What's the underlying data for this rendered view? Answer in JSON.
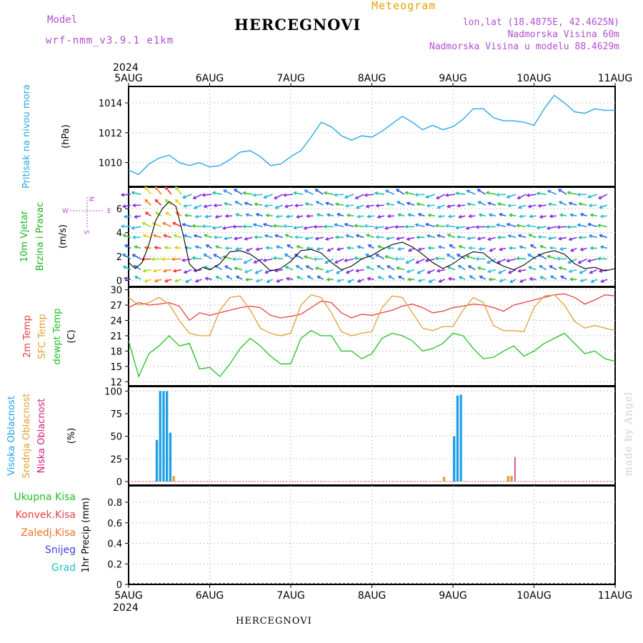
{
  "header": {
    "model_label": "Model",
    "model_name": "wrf-nmm_v3.9.1 e1km",
    "title": "HERCEGNOVI",
    "meteogram_label": "Meteogram",
    "lonlat": "lon,lat (18.4875E, 42.4625N)",
    "altitude": "Nadmorska Visina 60m",
    "model_altitude": "Nadmorska Visina u modelu 88.4629m"
  },
  "footer": {
    "location": "HERCEGNOVI",
    "watermark": "made by Angel"
  },
  "colors": {
    "pressure": "#2aa8e6",
    "temp2m": "#e84040",
    "sfc_temp": "#e0a030",
    "dewpoint": "#20c020",
    "cloud_high": "#1ea0e6",
    "cloud_mid": "#e0a030",
    "cloud_low": "#d02080",
    "precip_total": "#20c020",
    "precip_conv": "#e84040",
    "precip_frozen": "#f07020",
    "snow": "#4040e0",
    "hail": "#20c0c0"
  },
  "chart_data": [
    {
      "type": "line",
      "panel": "pressure",
      "ylabel_1": "Pritisak na nivou mora",
      "ylabel_2": "(hPa)",
      "x_year": "2024",
      "x_ticks": [
        "5AUG",
        "6AUG",
        "7AUG",
        "8AUG",
        "9AUG",
        "10AUG",
        "11AUG"
      ],
      "yticks": [
        1010,
        1012,
        1014
      ],
      "ylim": [
        1008.4,
        1015.1
      ],
      "grid": true,
      "series": [
        {
          "x": [
            0,
            3,
            6,
            9,
            12,
            15,
            18,
            21,
            24,
            27,
            30,
            33,
            36,
            39,
            42,
            45,
            48,
            51,
            54,
            57,
            60,
            63,
            66,
            69,
            72,
            75,
            78,
            81,
            84,
            87,
            90,
            93,
            96,
            99,
            102,
            105,
            108,
            111,
            114,
            117,
            120,
            123,
            126,
            129,
            132,
            135,
            138,
            141,
            144
          ],
          "values": [
            1009.5,
            1009.2,
            1009.9,
            1010.3,
            1010.5,
            1010.0,
            1009.8,
            1010.0,
            1009.7,
            1009.8,
            1010.2,
            1010.7,
            1010.8,
            1010.4,
            1009.8,
            1009.9,
            1010.4,
            1010.8,
            1011.7,
            1012.7,
            1012.4,
            1011.8,
            1011.5,
            1011.8,
            1011.7,
            1012.1,
            1012.6,
            1013.1,
            1012.7,
            1012.2,
            1012.5,
            1012.2,
            1012.4,
            1012.9,
            1013.6,
            1013.6,
            1013.0,
            1012.8,
            1012.8,
            1012.7,
            1012.5,
            1013.6,
            1014.5,
            1014.0,
            1013.4,
            1013.3,
            1013.6,
            1013.5,
            1013.5
          ]
        }
      ]
    },
    {
      "type": "line",
      "panel": "wind",
      "ylabel_1": "10m Vjetar",
      "ylabel_2": "Brzina i Pravac",
      "ylabel_3": "(m/s)",
      "compass": {
        "n": "N",
        "s": "S",
        "e": "E",
        "w": "W"
      },
      "yticks": [
        0,
        2,
        4,
        6
      ],
      "ylim": [
        -0.5,
        7.8
      ],
      "series": [
        {
          "name": "wind speed",
          "x": [
            0,
            2,
            4,
            6,
            8,
            10,
            12,
            14,
            16,
            18,
            20,
            22,
            24,
            27,
            30,
            33,
            36,
            39,
            42,
            45,
            48,
            51,
            54,
            57,
            60,
            63,
            66,
            69,
            72,
            75,
            78,
            81,
            84,
            87,
            90,
            93,
            96,
            99,
            102,
            105,
            108,
            111,
            114,
            117,
            120,
            123,
            126,
            129,
            132,
            135,
            138,
            141,
            144
          ],
          "values": [
            1.5,
            1.0,
            1.5,
            3.0,
            5.0,
            6.0,
            6.6,
            6.2,
            4.0,
            1.4,
            0.8,
            1.1,
            0.9,
            1.4,
            2.4,
            2.5,
            2.2,
            1.6,
            0.8,
            1.0,
            1.6,
            2.5,
            2.6,
            2.3,
            1.5,
            0.9,
            1.2,
            1.8,
            2.1,
            2.6,
            3.0,
            3.2,
            2.8,
            2.2,
            1.5,
            1.0,
            1.4,
            2.0,
            2.4,
            2.3,
            1.6,
            1.2,
            0.9,
            1.3,
            1.9,
            2.3,
            2.5,
            2.2,
            1.4,
            1.0,
            1.1,
            0.8,
            1.0
          ]
        }
      ]
    },
    {
      "type": "line",
      "panel": "temperature",
      "ylabel_1": "2m Temp",
      "ylabel_2": "SFC Temp",
      "ylabel_3": "dewpt Temp",
      "ylabel_4": "(C)",
      "yticks": [
        12,
        15,
        18,
        21,
        24,
        27,
        30
      ],
      "ylim": [
        11.2,
        30.5
      ],
      "series": [
        {
          "name": "2m Temp",
          "x": [
            0,
            3,
            6,
            9,
            12,
            15,
            18,
            21,
            24,
            27,
            30,
            33,
            36,
            39,
            42,
            45,
            48,
            51,
            54,
            57,
            60,
            63,
            66,
            69,
            72,
            75,
            78,
            81,
            84,
            87,
            90,
            93,
            96,
            99,
            102,
            105,
            108,
            111,
            114,
            117,
            120,
            123,
            126,
            129,
            132,
            135,
            138,
            141,
            144
          ],
          "values": [
            26.5,
            27.5,
            27.0,
            27.2,
            27.5,
            26.8,
            24.0,
            25.5,
            25.0,
            25.5,
            26.0,
            26.5,
            26.8,
            26.5,
            25.0,
            24.5,
            24.8,
            25.2,
            26.5,
            27.8,
            27.5,
            25.5,
            24.5,
            25.2,
            25.0,
            25.5,
            26.0,
            26.8,
            27.2,
            26.5,
            25.5,
            25.8,
            26.5,
            26.8,
            27.2,
            27.0,
            26.5,
            25.8,
            27.0,
            27.5,
            28.0,
            28.5,
            29.0,
            29.2,
            28.5,
            27.2,
            28.0,
            29.0,
            28.8
          ]
        },
        {
          "name": "SFC Temp",
          "x": [
            0,
            3,
            6,
            9,
            12,
            15,
            18,
            21,
            24,
            27,
            30,
            33,
            36,
            39,
            42,
            45,
            48,
            51,
            54,
            57,
            60,
            63,
            66,
            69,
            72,
            75,
            78,
            81,
            84,
            87,
            90,
            93,
            96,
            99,
            102,
            105,
            108,
            111,
            114,
            117,
            120,
            123,
            126,
            129,
            132,
            135,
            138,
            141,
            144
          ],
          "values": [
            28.5,
            27.0,
            27.5,
            28.5,
            27.2,
            24.0,
            21.5,
            21.0,
            21.0,
            26.0,
            28.5,
            28.8,
            26.0,
            22.5,
            21.5,
            21.0,
            21.5,
            27.0,
            29.0,
            28.5,
            25.5,
            21.8,
            21.0,
            21.5,
            21.8,
            26.5,
            28.8,
            28.5,
            25.5,
            22.5,
            22.0,
            22.8,
            22.8,
            26.0,
            28.5,
            27.5,
            23.0,
            22.0,
            22.0,
            21.8,
            26.5,
            28.8,
            29.0,
            27.0,
            23.8,
            22.5,
            23.0,
            22.5,
            22.0
          ]
        },
        {
          "name": "dewpt Temp",
          "x": [
            0,
            3,
            6,
            9,
            12,
            15,
            18,
            21,
            24,
            27,
            30,
            33,
            36,
            39,
            42,
            45,
            48,
            51,
            54,
            57,
            60,
            63,
            66,
            69,
            72,
            75,
            78,
            81,
            84,
            87,
            90,
            93,
            96,
            99,
            102,
            105,
            108,
            111,
            114,
            117,
            120,
            123,
            126,
            129,
            132,
            135,
            138,
            141,
            144
          ],
          "values": [
            20.0,
            13.0,
            17.5,
            19.0,
            21.0,
            19.0,
            19.5,
            14.5,
            14.8,
            13.0,
            15.5,
            18.5,
            20.5,
            19.0,
            17.0,
            15.5,
            15.5,
            20.5,
            22.0,
            21.0,
            21.0,
            18.0,
            18.0,
            16.5,
            17.5,
            20.5,
            21.5,
            21.0,
            20.0,
            18.0,
            18.5,
            19.5,
            21.5,
            21.0,
            18.5,
            16.5,
            16.8,
            18.0,
            19.0,
            17.0,
            18.0,
            19.5,
            20.5,
            21.5,
            19.5,
            17.5,
            18.0,
            16.5,
            16.0
          ]
        }
      ]
    },
    {
      "type": "bar",
      "panel": "cloud",
      "ylabel_1": "Visoka Oblacnost",
      "ylabel_2": "Srednja Oblacnost",
      "ylabel_3": "Niska Oblacnost",
      "ylabel_4": "(%)",
      "yticks": [
        0,
        25,
        50,
        75,
        100
      ],
      "ylim": [
        -4,
        105
      ],
      "series": [
        {
          "name": "Visoka Oblacnost",
          "x": [
            8,
            9,
            10,
            11,
            12,
            96,
            97,
            98
          ],
          "values": [
            46,
            100,
            100,
            100,
            54,
            50,
            95,
            96
          ]
        },
        {
          "name": "Srednja Oblacnost",
          "x": [
            13,
            93,
            112,
            113
          ],
          "values": [
            6,
            5,
            6,
            6
          ]
        },
        {
          "name": "Niska Oblacnost",
          "x": [
            114
          ],
          "values": [
            27
          ]
        }
      ]
    },
    {
      "type": "bar",
      "panel": "precip",
      "ylabel_1": "Ukupna Kisa",
      "ylabel_2": "Konvek.Kisa",
      "ylabel_3": "Zaledj.Kisa",
      "ylabel_4": "Snijeg",
      "ylabel_5": "Grad",
      "ylabel_6": "1hr Precip (mm)",
      "yticks": [
        0,
        0.2,
        0.4,
        0.6,
        0.8
      ],
      "ylim": [
        0,
        0.96
      ],
      "series": [
        {
          "name": "1hr Precip",
          "x": [],
          "values": []
        }
      ]
    }
  ]
}
